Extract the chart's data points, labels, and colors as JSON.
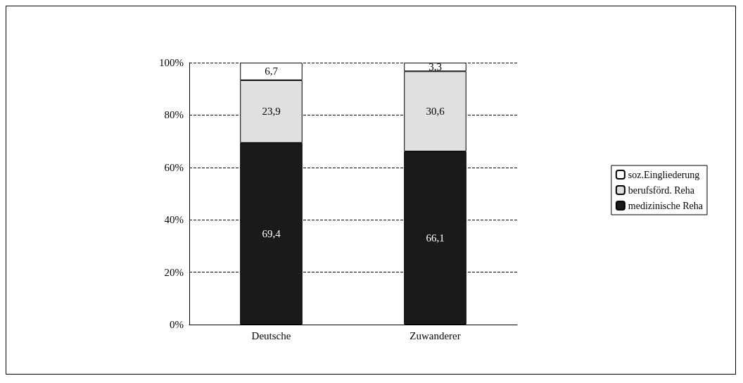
{
  "chart_data": {
    "type": "bar",
    "stacked": true,
    "categories": [
      "Deutsche",
      "Zuwanderer"
    ],
    "series": [
      {
        "name": "medizinische Reha",
        "color": "#1a1a1a",
        "values": [
          69.4,
          66.1
        ],
        "value_labels": [
          "69,4",
          "66,1"
        ]
      },
      {
        "name": "berufsförd. Reha",
        "color": "#e0e0e0",
        "values": [
          23.9,
          30.6
        ],
        "value_labels": [
          "23,9",
          "30,6"
        ]
      },
      {
        "name": "soz.Eingliederung",
        "color": "#ffffff",
        "values": [
          6.7,
          3.3
        ],
        "value_labels": [
          "6,7",
          "3,3"
        ]
      }
    ],
    "ylim": [
      0,
      100
    ],
    "yticks": [
      {
        "value": 0,
        "label": "0%"
      },
      {
        "value": 20,
        "label": "20%"
      },
      {
        "value": 40,
        "label": "40%"
      },
      {
        "value": 60,
        "label": "60%"
      },
      {
        "value": 80,
        "label": "80%"
      },
      {
        "value": 100,
        "label": "100%"
      }
    ],
    "grid": "y",
    "line_style": "dashed",
    "legend": "right"
  }
}
